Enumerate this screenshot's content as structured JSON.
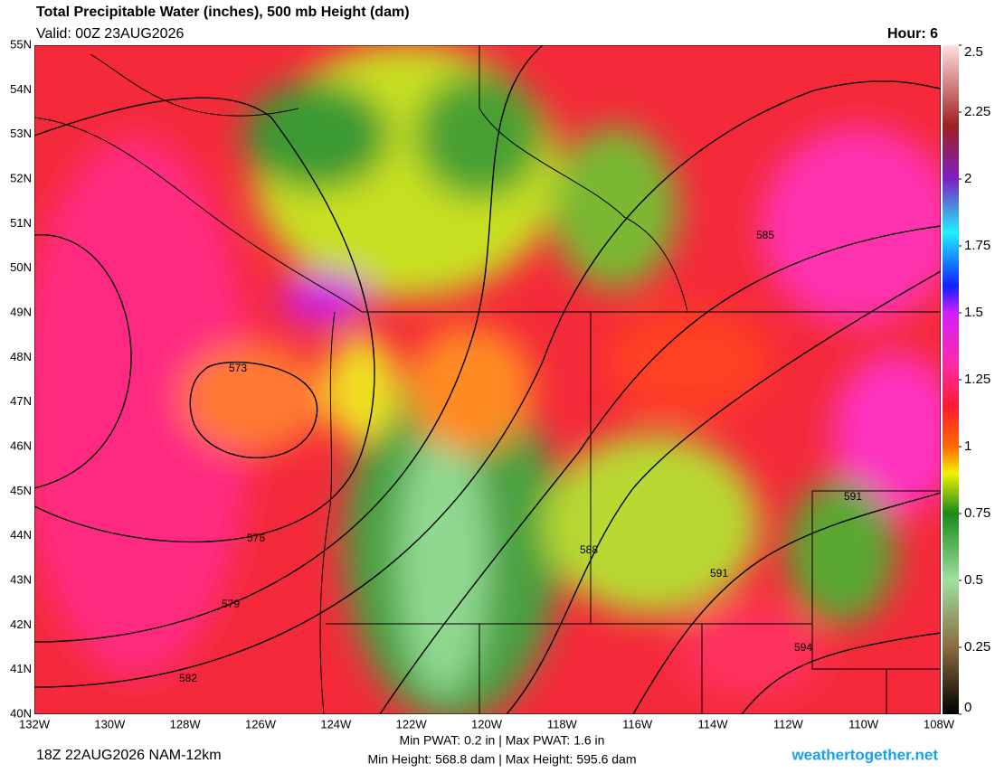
{
  "header": {
    "title": "Total Precipitable Water (inches), 500 mb Height (dam)",
    "valid": "Valid: 00Z 23AUG2026",
    "hour": "Hour: 6"
  },
  "map": {
    "lat_labels": [
      "55N",
      "54N",
      "53N",
      "52N",
      "51N",
      "50N",
      "49N",
      "48N",
      "47N",
      "46N",
      "45N",
      "44N",
      "43N",
      "42N",
      "41N",
      "40N"
    ],
    "lon_labels": [
      "132W",
      "130W",
      "128W",
      "126W",
      "124W",
      "122W",
      "120W",
      "118W",
      "116W",
      "114W",
      "112W",
      "110W",
      "108W"
    ],
    "contour_labels": [
      "573",
      "576",
      "579",
      "582",
      "585",
      "588",
      "591",
      "591",
      "594"
    ]
  },
  "colorbar": {
    "range": [
      0,
      2.5
    ],
    "ticks": [
      0,
      0.25,
      0.5,
      0.75,
      1,
      1.25,
      1.5,
      1.75,
      2,
      2.25,
      2.5
    ]
  },
  "footer": {
    "run": "18Z 22AUG2026 NAM-12km",
    "pwat": "Min PWAT:   0.2 in | Max PWAT:   1.6 in",
    "height": "Min Height: 568.8 dam | Max Height: 595.6 dam",
    "site": "weathertogether.net"
  }
}
